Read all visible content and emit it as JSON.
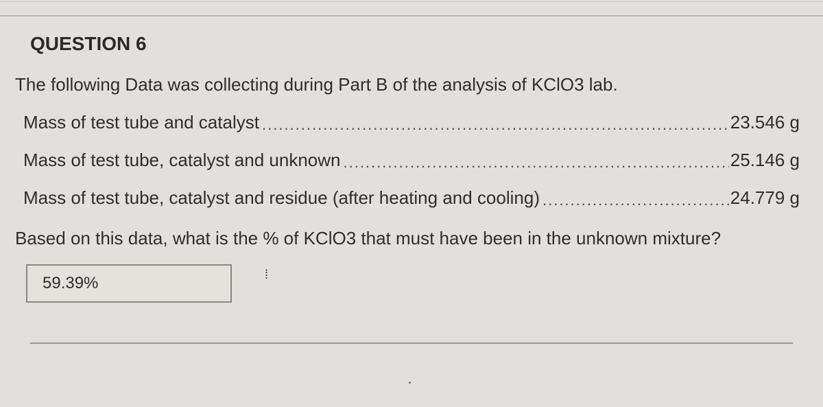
{
  "question": {
    "title": "QUESTION 6",
    "intro": "The following Data was collecting during Part B of the analysis of KClO3 lab.",
    "rows": [
      {
        "label": "Mass of test tube and catalyst",
        "value": "23.546 g"
      },
      {
        "label": "Mass of test tube, catalyst and unknown",
        "value": "25.146 g"
      },
      {
        "label": "Mass of test tube, catalyst and residue (after heating and cooling)",
        "value": "24.779 g"
      }
    ],
    "prompt": "Based on this data, what is the % of KClO3 that must have been in the unknown mixture?",
    "answer": "59.39%"
  },
  "style": {
    "background": "#e2e0dc",
    "text_color": "#2e2e2e",
    "title_fontsize": 28,
    "body_fontsize": 26,
    "answer_border": "#8a8782"
  }
}
